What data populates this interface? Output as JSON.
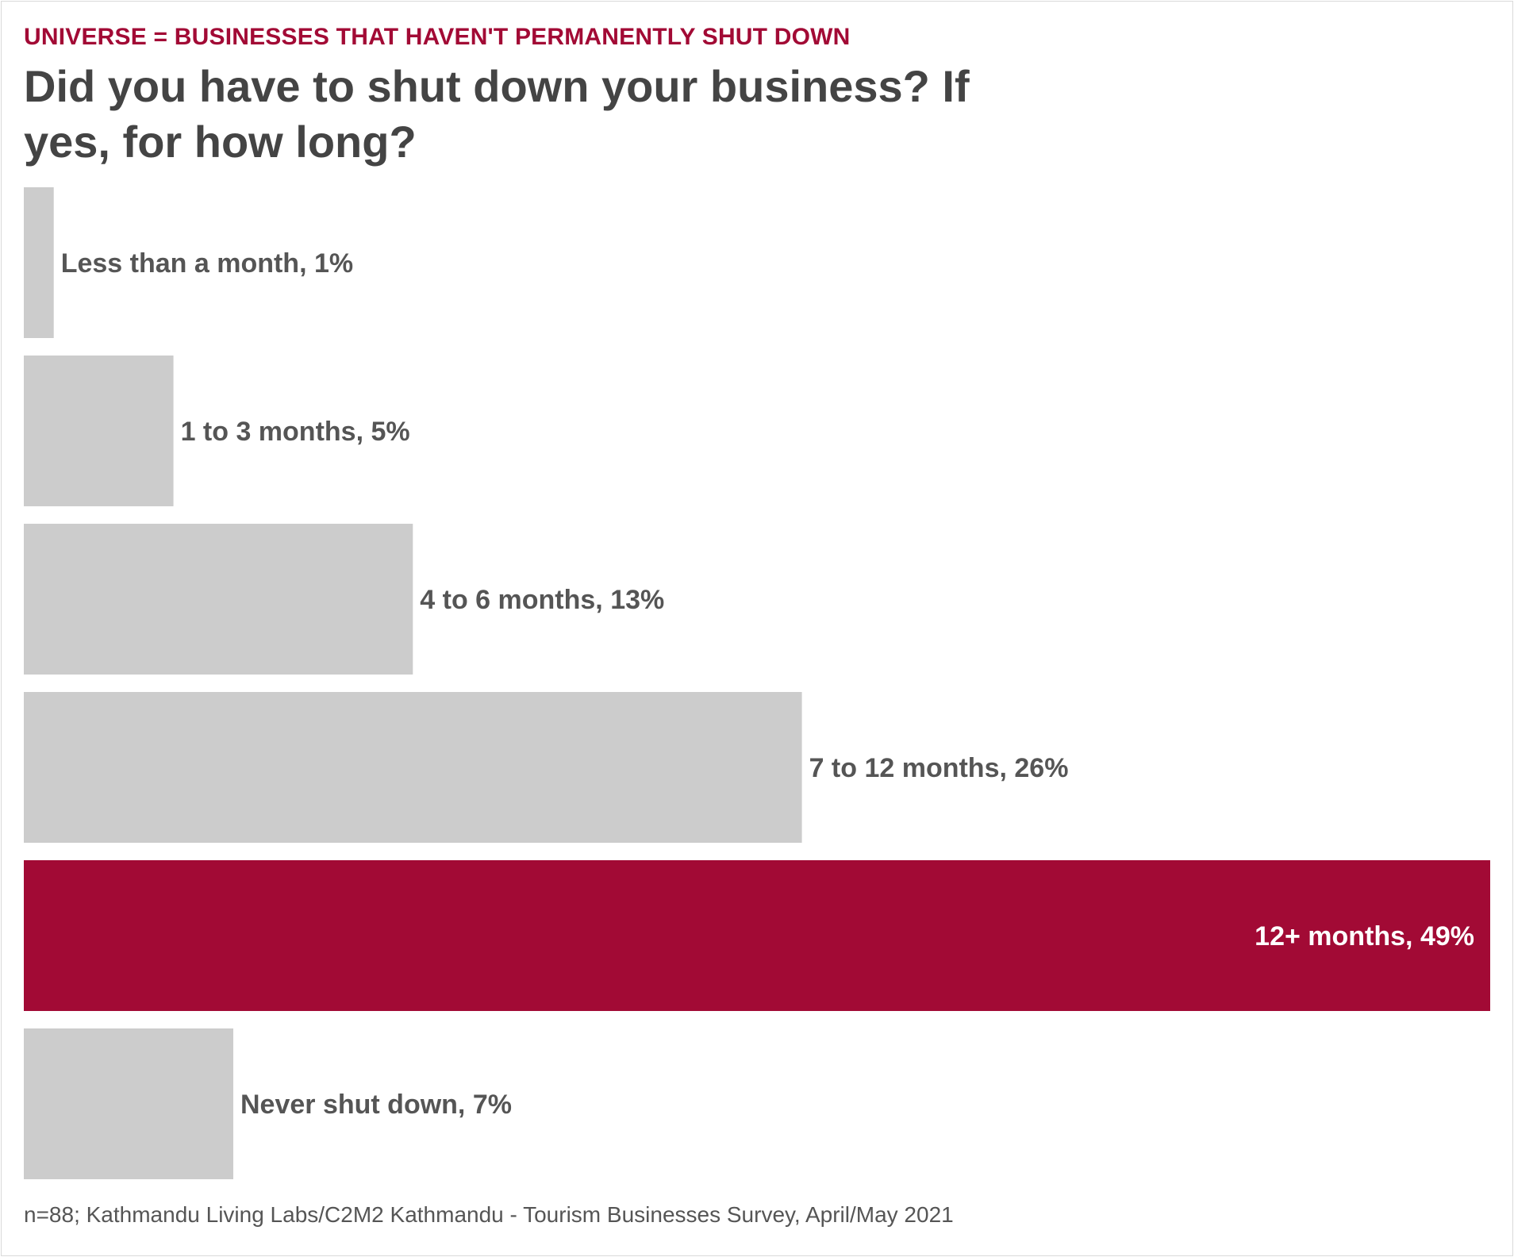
{
  "chart_data": {
    "type": "bar",
    "orientation": "horizontal",
    "universe_label": "UNIVERSE = BUSINESSES THAT HAVEN'T PERMANENTLY SHUT DOWN",
    "title": "Did you have to shut down your business? If yes, for how long?",
    "categories": [
      "Less than a month",
      "1 to 3 months",
      "4 to 6 months",
      "7 to 12 months",
      "12+ months",
      "Never shut down"
    ],
    "values": [
      1,
      5,
      13,
      26,
      49,
      7
    ],
    "bar_labels": [
      "Less than a month, 1%",
      "1 to 3 months, 5%",
      "4 to 6 months, 13%",
      "7 to 12 months, 26%",
      "12+ months, 49%",
      "Never shut down, 7%"
    ],
    "highlight_index": 4,
    "unit": "%",
    "xlim": [
      0,
      49
    ],
    "grid": false,
    "legend": "none",
    "colors": {
      "default_bar": "#cccccc",
      "highlight_bar": "#a20a35",
      "label_text": "#555555",
      "highlight_label_text": "#ffffff"
    },
    "source": "n=88; Kathmandu Living Labs/C2M2 Kathmandu - Tourism Businesses Survey, April/May 2021"
  }
}
